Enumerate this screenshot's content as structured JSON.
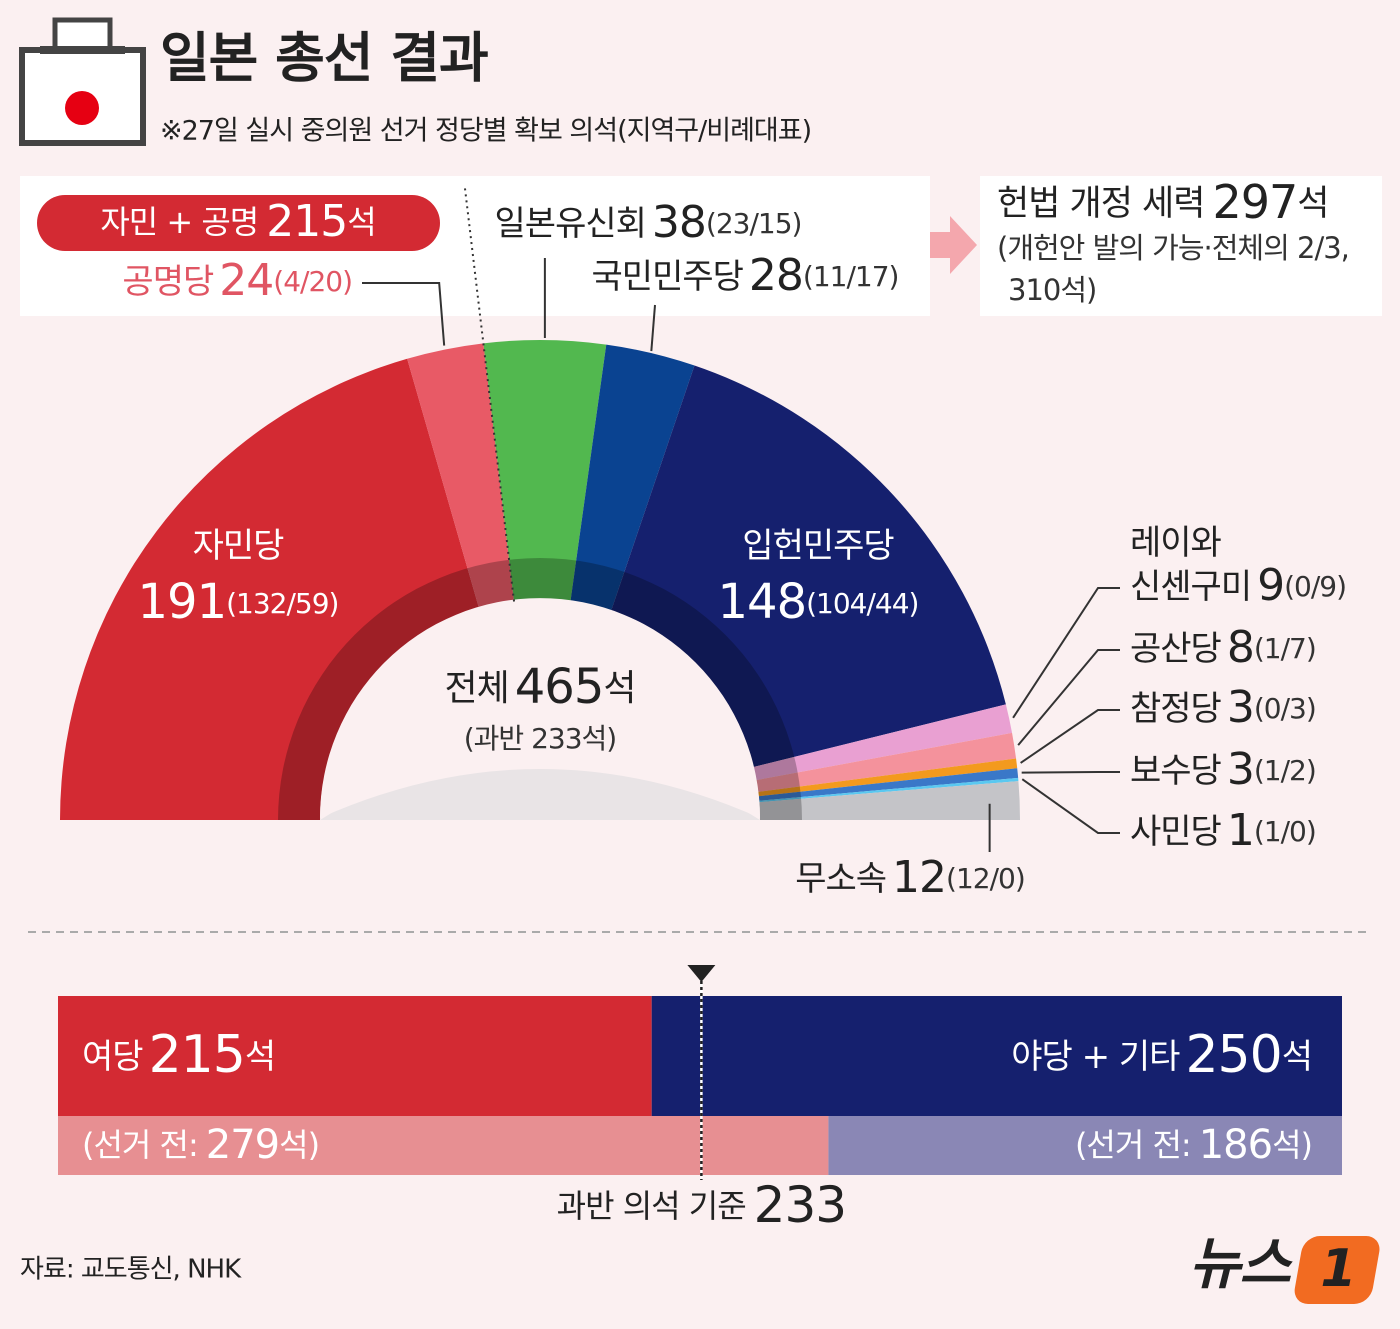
{
  "header": {
    "title": "일본 총선 결과",
    "subtitle": "※27일 실시 중의원 선거 정당별 확보 의석(지역구/비례대표)"
  },
  "chart_data": [
    {
      "type": "half-donut",
      "categories": [
        "자민당",
        "공명당",
        "일본유신회",
        "국민민주당",
        "입헌민주당",
        [
          "레이와",
          "신센구미"
        ],
        "공산당",
        "참정당",
        "보수당",
        "사민당",
        "무소속"
      ],
      "values": [
        191,
        24,
        38,
        28,
        148,
        9,
        8,
        3,
        3,
        1,
        12
      ],
      "details": [
        "(132/59)",
        "(4/20)",
        "(23/15)",
        "(11/17)",
        "(104/44)",
        "(0/9)",
        "(1/7)",
        "(0/3)",
        "(1/2)",
        "(1/0)",
        "(12/0)"
      ],
      "colors": [
        "#d32a33",
        "#e85a66",
        "#52b84f",
        "#0a4391",
        "#15206e",
        "#e9a0d2",
        "#f4929c",
        "#f39a1e",
        "#3a78c8",
        "#5ac8f0",
        "#c4c4c8"
      ],
      "total_label": "전체",
      "total": 465,
      "unit": "석",
      "majority_note": "(과반 233석)",
      "coalition": {
        "label": "자민 + 공명",
        "value": 215
      },
      "reform": {
        "label": "헌법 개정 세력",
        "value": 297,
        "note_lines": [
          "(개헌안 발의 가능·전체의 2/3,",
          "310석)"
        ]
      }
    },
    {
      "type": "stacked-bar",
      "xlim": [
        0,
        465
      ],
      "unit": "석",
      "series": [
        {
          "name": "여당",
          "values": [
            215,
            279
          ],
          "colors": [
            "#d32a33",
            "#e78f92"
          ]
        },
        {
          "name": "야당 + 기타",
          "values": [
            250,
            186
          ],
          "colors": [
            "#15206e",
            "#8a87b5"
          ]
        }
      ],
      "before_prefix": "(선거 전:",
      "before_suffix": "석)",
      "threshold": {
        "label": "과반 의석 기준",
        "value": 233
      }
    }
  ],
  "footer": {
    "source": "자료: 교도통신, NHK",
    "logo": "뉴스",
    "logo_mark": "1"
  }
}
